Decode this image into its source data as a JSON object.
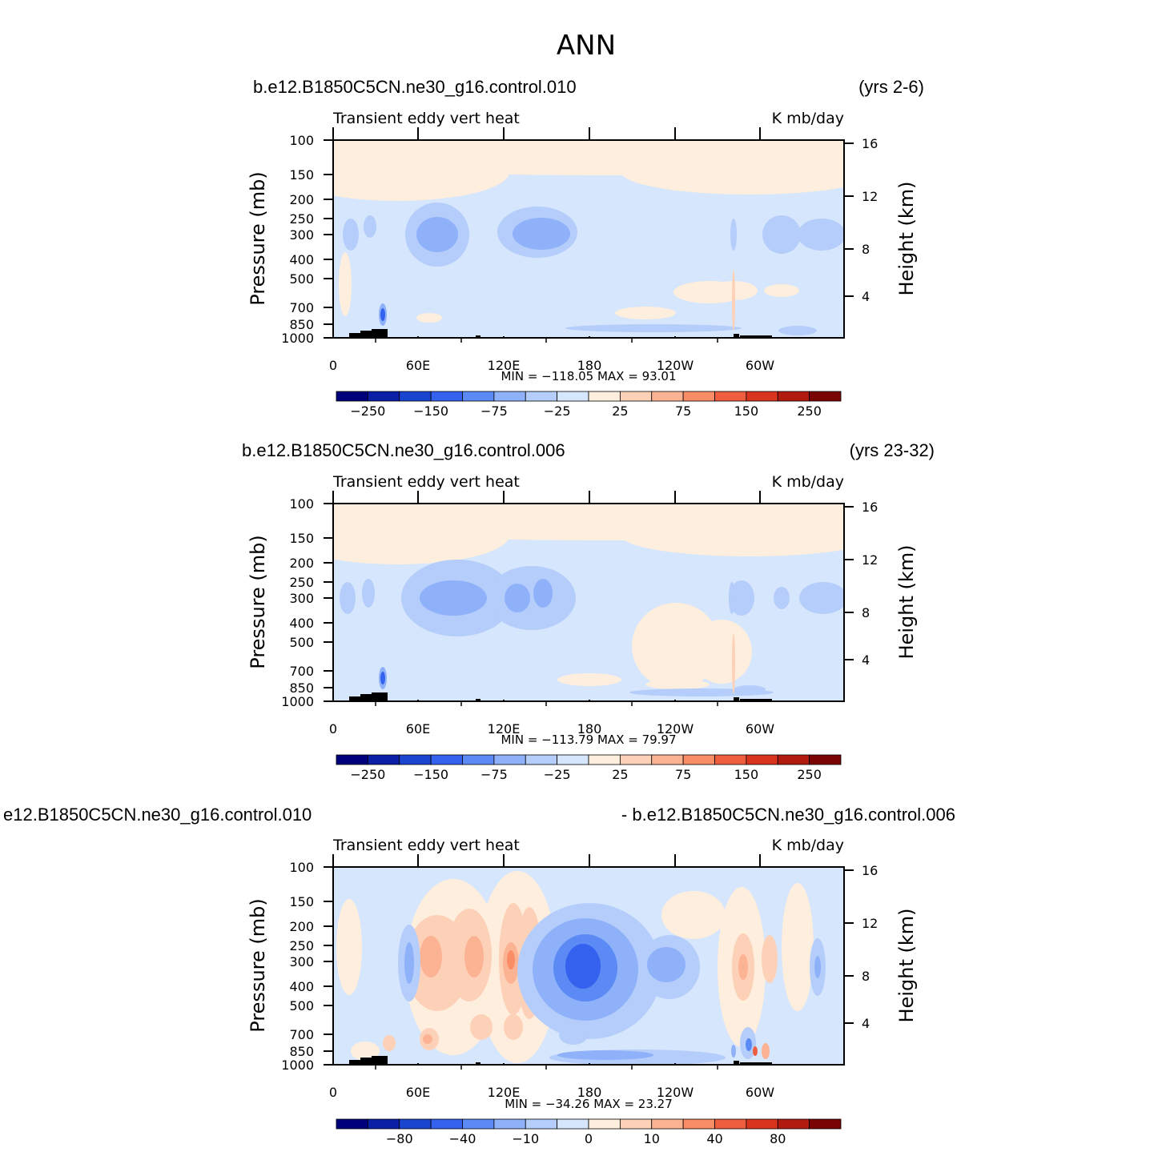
{
  "title": "ANN",
  "colors": [
    "#00007a",
    "#0a1fa5",
    "#1a45d0",
    "#3461ee",
    "#5b8af5",
    "#8eb1fa",
    "#b5cdfa",
    "#d6e6fc",
    "#feeedd",
    "#fdd1b8",
    "#fcb394",
    "#f88d66",
    "#ef5f3f",
    "#d9341e",
    "#b01a0f",
    "#7a0403"
  ],
  "chart_data": [
    {
      "type": "heatmap",
      "case_left": "b.e12.B1850C5CN.ne30_g16.control.010",
      "case_right": "(yrs 2-6)",
      "variable": "Transient eddy vert heat",
      "units": "K mb/day",
      "ylabel": "Pressure (mb)",
      "y2label": "Height (km)",
      "x_ticks": [
        "0",
        "60E",
        "120E",
        "180",
        "120W",
        "60W"
      ],
      "y_ticks": [
        "100",
        "150",
        "200",
        "250",
        "300",
        "400",
        "500",
        "700",
        "850",
        "1000"
      ],
      "y2_ticks": [
        "16",
        "12",
        "8",
        "4"
      ],
      "stats": "MIN = −118.05   MAX =   93.01",
      "colorbar_labels": [
        "−250",
        "−150",
        "−75",
        "−25",
        "25",
        "75",
        "150",
        "250"
      ]
    },
    {
      "type": "heatmap",
      "case_left": "b.e12.B1850C5CN.ne30_g16.control.006",
      "case_right": "(yrs 23-32)",
      "variable": "Transient eddy vert heat",
      "units": "K mb/day",
      "ylabel": "Pressure (mb)",
      "y2label": "Height (km)",
      "x_ticks": [
        "0",
        "60E",
        "120E",
        "180",
        "120W",
        "60W"
      ],
      "y_ticks": [
        "100",
        "150",
        "200",
        "250",
        "300",
        "400",
        "500",
        "700",
        "850",
        "1000"
      ],
      "y2_ticks": [
        "16",
        "12",
        "8",
        "4"
      ],
      "stats": "MIN = −113.79   MAX =   79.97",
      "colorbar_labels": [
        "−250",
        "−150",
        "−75",
        "−25",
        "25",
        "75",
        "150",
        "250"
      ]
    },
    {
      "type": "heatmap",
      "case_left": "e12.B1850C5CN.ne30_g16.control.010",
      "case_right": "- b.e12.B1850C5CN.ne30_g16.control.006",
      "variable": "Transient eddy vert heat",
      "units": "K mb/day",
      "ylabel": "Pressure (mb)",
      "y2label": "Height (km)",
      "x_ticks": [
        "0",
        "60E",
        "120E",
        "180",
        "120W",
        "60W"
      ],
      "y_ticks": [
        "100",
        "150",
        "200",
        "250",
        "300",
        "400",
        "500",
        "700",
        "850",
        "1000"
      ],
      "y2_ticks": [
        "16",
        "12",
        "8",
        "4"
      ],
      "stats": "MIN = −34.26   MAX =   23.27",
      "colorbar_labels": [
        "−80",
        "−40",
        "−10",
        "0",
        "10",
        "40",
        "80"
      ]
    }
  ]
}
